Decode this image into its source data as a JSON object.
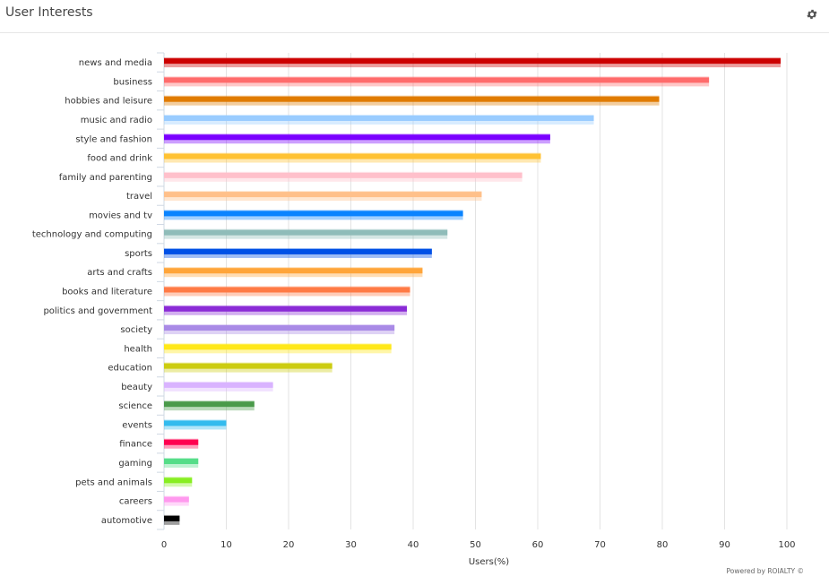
{
  "header": {
    "title": "User Interests",
    "settings_icon": "gear-icon"
  },
  "footer": {
    "credit": "Powered by ROIALTY ©"
  },
  "chart_data": {
    "type": "bar",
    "orientation": "horizontal",
    "title": "User Interests",
    "xlabel": "Users(%)",
    "ylabel": "",
    "xlim": [
      0,
      100
    ],
    "xticks": [
      0,
      10,
      20,
      30,
      40,
      50,
      60,
      70,
      80,
      90,
      100
    ],
    "grid": true,
    "legend": "none",
    "categories": [
      "news and media",
      "business",
      "hobbies and leisure",
      "music and radio",
      "style and fashion",
      "food and drink",
      "family and parenting",
      "travel",
      "movies and tv",
      "technology and computing",
      "sports",
      "arts and crafts",
      "books and literature",
      "politics and government",
      "society",
      "health",
      "education",
      "beauty",
      "science",
      "events",
      "finance",
      "gaming",
      "pets and animals",
      "careers",
      "automotive"
    ],
    "values": [
      99,
      87.5,
      79.5,
      69,
      62,
      60.5,
      57.5,
      51,
      48,
      45.5,
      43,
      41.5,
      39.5,
      39,
      37,
      36.5,
      27,
      17.5,
      14.5,
      10,
      5.5,
      5.5,
      4.5,
      4,
      2.5
    ],
    "colors": [
      "#cc0000",
      "#ff6b6b",
      "#e07b00",
      "#99ccff",
      "#7a00ff",
      "#ffc233",
      "#ffc0cb",
      "#ffc08a",
      "#0a84ff",
      "#8fbcb9",
      "#0050e6",
      "#ffa53a",
      "#ff7a45",
      "#8a2bd6",
      "#a98ae6",
      "#ffe81a",
      "#cccc11",
      "#d9b3ff",
      "#4a9a4a",
      "#33bbee",
      "#ff0050",
      "#55dd88",
      "#88ee22",
      "#ff99ee",
      "#000000"
    ]
  }
}
